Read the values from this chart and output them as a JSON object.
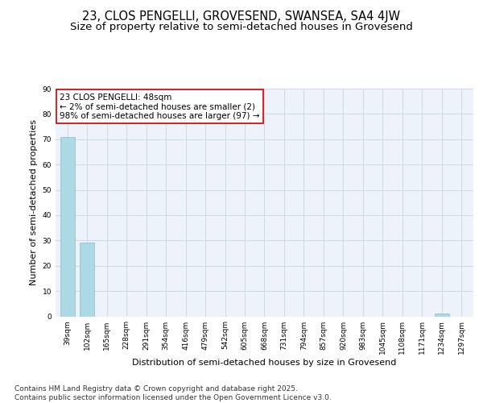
{
  "title": "23, CLOS PENGELLI, GROVESEND, SWANSEA, SA4 4JW",
  "subtitle": "Size of property relative to semi-detached houses in Grovesend",
  "xlabel": "Distribution of semi-detached houses by size in Grovesend",
  "ylabel": "Number of semi-detached properties",
  "categories": [
    "39sqm",
    "102sqm",
    "165sqm",
    "228sqm",
    "291sqm",
    "354sqm",
    "416sqm",
    "479sqm",
    "542sqm",
    "605sqm",
    "668sqm",
    "731sqm",
    "794sqm",
    "857sqm",
    "920sqm",
    "983sqm",
    "1045sqm",
    "1108sqm",
    "1171sqm",
    "1234sqm",
    "1297sqm"
  ],
  "values": [
    71,
    29,
    0,
    0,
    0,
    0,
    0,
    0,
    0,
    0,
    0,
    0,
    0,
    0,
    0,
    0,
    0,
    0,
    0,
    1,
    0
  ],
  "bar_color": "#add8e6",
  "bar_edge_color": "#89bdd3",
  "annotation_box_color": "#cc0000",
  "annotation_text": "23 CLOS PENGELLI: 48sqm\n← 2% of semi-detached houses are smaller (2)\n98% of semi-detached houses are larger (97) →",
  "ylim": [
    0,
    90
  ],
  "yticks": [
    0,
    10,
    20,
    30,
    40,
    50,
    60,
    70,
    80,
    90
  ],
  "grid_color": "#d0d8e8",
  "background_color": "#eef2fb",
  "footer": "Contains HM Land Registry data © Crown copyright and database right 2025.\nContains public sector information licensed under the Open Government Licence v3.0.",
  "title_fontsize": 10.5,
  "subtitle_fontsize": 9.5,
  "axis_label_fontsize": 8,
  "tick_fontsize": 6.5,
  "annotation_fontsize": 7.5,
  "footer_fontsize": 6.5
}
